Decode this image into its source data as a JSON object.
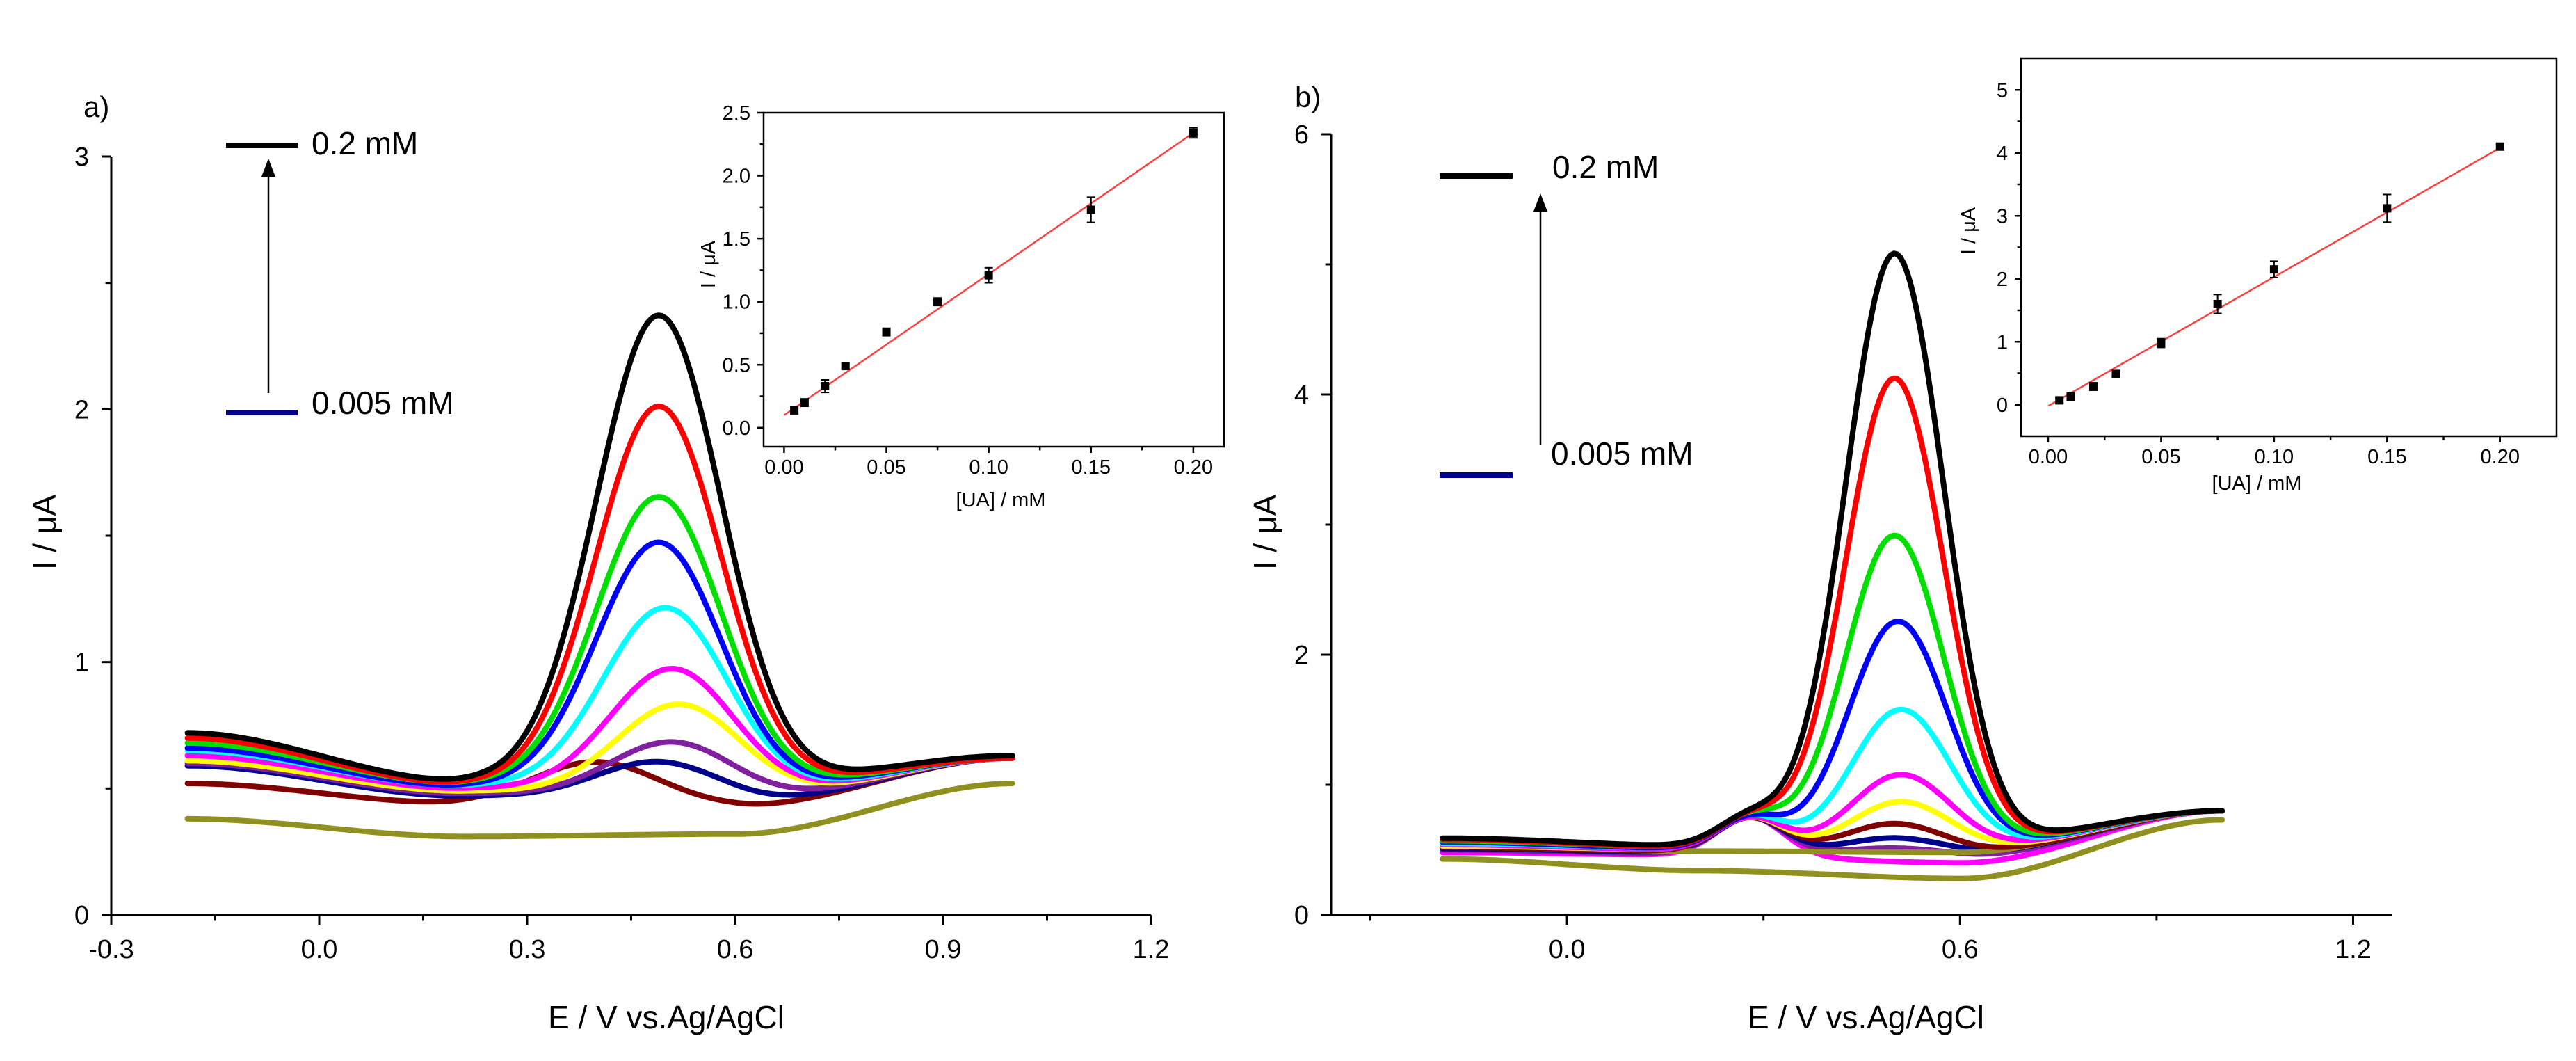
{
  "colors": {
    "c0.2": "#000000",
    "c0.15": "#ff0000",
    "c0.1": "#00e000",
    "c0.075": "#0000ff",
    "c0.05": "#00ffff",
    "c0.03": "#ff00ff",
    "c0.02": "#ffff00",
    "c0.01": "#8020a0",
    "c0.005": "#00008b",
    "c0.001": "#800000",
    "blank": "#909020",
    "fit": "#ff4040",
    "point": "#000000"
  },
  "chart_data": [
    {
      "id": "a_main",
      "type": "line",
      "panel_label": "a)",
      "xlabel": "E / V vs.Ag/AgCl",
      "ylabel": "I / μA",
      "xlim": [
        -0.3,
        1.2
      ],
      "ylim": [
        0,
        3
      ],
      "xticks": [
        "-0.3",
        "0.0",
        "0.3",
        "0.6",
        "0.9",
        "1.2"
      ],
      "yticks": [
        "0",
        "1",
        "2",
        "3"
      ],
      "annotation": {
        "top_label": "0.2 mM",
        "bottom_label": "0.005 mM"
      },
      "x_range": [
        -0.19,
        1.0
      ],
      "series": [
        {
          "color_key": "blank",
          "baseline": [
            0.38,
            0.31,
            0.32,
            0.52
          ],
          "peak_x": 0.49,
          "peak_height": 0.0,
          "peak_width": 0.09
        },
        {
          "color_key": "c0.001",
          "baseline": [
            0.52,
            0.44,
            0.43,
            0.62
          ],
          "peak_x": 0.4,
          "peak_height": 0.17,
          "peak_width": 0.09
        },
        {
          "color_key": "c0.005",
          "baseline": [
            0.59,
            0.47,
            0.44,
            0.62
          ],
          "peak_x": 0.49,
          "peak_height": 0.16,
          "peak_width": 0.09
        },
        {
          "color_key": "c0.01",
          "baseline": [
            0.6,
            0.48,
            0.45,
            0.62
          ],
          "peak_x": 0.51,
          "peak_height": 0.23,
          "peak_width": 0.09
        },
        {
          "color_key": "c0.02",
          "baseline": [
            0.61,
            0.49,
            0.46,
            0.62
          ],
          "peak_x": 0.52,
          "peak_height": 0.37,
          "peak_width": 0.09
        },
        {
          "color_key": "c0.03",
          "baseline": [
            0.63,
            0.5,
            0.47,
            0.62
          ],
          "peak_x": 0.51,
          "peak_height": 0.5,
          "peak_width": 0.09
        },
        {
          "color_key": "c0.05",
          "baseline": [
            0.65,
            0.51,
            0.48,
            0.62
          ],
          "peak_x": 0.5,
          "peak_height": 0.73,
          "peak_width": 0.09
        },
        {
          "color_key": "c0.075",
          "baseline": [
            0.66,
            0.51,
            0.49,
            0.62
          ],
          "peak_x": 0.49,
          "peak_height": 0.98,
          "peak_width": 0.09
        },
        {
          "color_key": "c0.1",
          "baseline": [
            0.68,
            0.52,
            0.5,
            0.62
          ],
          "peak_x": 0.49,
          "peak_height": 1.15,
          "peak_width": 0.09
        },
        {
          "color_key": "c0.15",
          "baseline": [
            0.7,
            0.52,
            0.51,
            0.62
          ],
          "peak_x": 0.49,
          "peak_height": 1.5,
          "peak_width": 0.09
        },
        {
          "color_key": "c0.2",
          "baseline": [
            0.72,
            0.53,
            0.52,
            0.63
          ],
          "peak_x": 0.49,
          "peak_height": 1.85,
          "peak_width": 0.09
        }
      ]
    },
    {
      "id": "a_inset",
      "type": "scatter",
      "xlabel": "[UA] / mM",
      "ylabel": "I / μA",
      "xlim": [
        -0.01,
        0.215
      ],
      "ylim": [
        -0.15,
        2.5
      ],
      "xticks": [
        "0.00",
        "0.05",
        "0.10",
        "0.15",
        "0.20"
      ],
      "yticks": [
        "0.0",
        "0.5",
        "1.0",
        "1.5",
        "2.0",
        "2.5"
      ],
      "x": [
        0.005,
        0.01,
        0.02,
        0.03,
        0.05,
        0.075,
        0.1,
        0.15,
        0.2
      ],
      "y": [
        0.14,
        0.2,
        0.33,
        0.49,
        0.76,
        1.0,
        1.21,
        1.73,
        2.34
      ],
      "err": [
        0.03,
        0.03,
        0.05,
        0.02,
        0.03,
        0.03,
        0.06,
        0.1,
        0.04
      ],
      "fit": [
        [
          0.0,
          0.1
        ],
        [
          0.2,
          2.34
        ]
      ]
    },
    {
      "id": "b_main",
      "type": "line",
      "panel_label": "b)",
      "xlabel": "E / V vs.Ag/AgCl",
      "ylabel": "I / μA",
      "xlim": [
        -0.36,
        1.26
      ],
      "ylim": [
        0,
        6
      ],
      "xticks": [
        "0.0",
        "0.6",
        "1.2"
      ],
      "yticks": [
        "0",
        "2",
        "4",
        "6"
      ],
      "annotation": {
        "top_label": "0.2 mM",
        "bottom_label": "0.005 mM"
      },
      "x_range": [
        -0.19,
        1.0
      ],
      "series": [
        {
          "color_key": "blank",
          "baseline": [
            0.43,
            0.34,
            0.28,
            0.73
          ],
          "peak_x": 0.5,
          "peak_height": 0.0,
          "peak_width": 0.075,
          "bump": 0.0
        },
        {
          "color_key": "c0.03",
          "baseline": [
            0.48,
            0.46,
            0.4,
            0.8
          ],
          "peak_x": 0.5,
          "peak_height": 0.0,
          "peak_width": 0.075,
          "bump": 0.3
        },
        {
          "color_key": "c0.01",
          "baseline": [
            0.5,
            0.47,
            0.45,
            0.8
          ],
          "peak_x": 0.5,
          "peak_height": 0.06,
          "peak_width": 0.075,
          "bump": 0.28
        },
        {
          "color_key": "c0.005",
          "baseline": [
            0.51,
            0.48,
            0.47,
            0.8
          ],
          "peak_x": 0.5,
          "peak_height": 0.12,
          "peak_width": 0.075,
          "bump": 0.27
        },
        {
          "color_key": "blank",
          "baseline": [
            0.52,
            0.49,
            0.48,
            0.8
          ],
          "peak_x": 0.5,
          "peak_height": 0.0,
          "peak_width": 0.075,
          "bump": 0.0
        },
        {
          "color_key": "c0.001",
          "baseline": [
            0.52,
            0.49,
            0.48,
            0.8
          ],
          "peak_x": 0.5,
          "peak_height": 0.22,
          "peak_width": 0.075,
          "bump": 0.26
        },
        {
          "color_key": "c0.02",
          "baseline": [
            0.53,
            0.5,
            0.5,
            0.8
          ],
          "peak_x": 0.51,
          "peak_height": 0.37,
          "peak_width": 0.075,
          "bump": 0.25
        },
        {
          "color_key": "c0.03",
          "baseline": [
            0.54,
            0.5,
            0.51,
            0.8
          ],
          "peak_x": 0.51,
          "peak_height": 0.57,
          "peak_width": 0.075,
          "bump": 0.25
        },
        {
          "color_key": "c0.05",
          "baseline": [
            0.55,
            0.51,
            0.52,
            0.8
          ],
          "peak_x": 0.51,
          "peak_height": 1.06,
          "peak_width": 0.075,
          "bump": 0.25
        },
        {
          "color_key": "c0.075",
          "baseline": [
            0.56,
            0.51,
            0.53,
            0.8
          ],
          "peak_x": 0.505,
          "peak_height": 1.73,
          "peak_width": 0.075,
          "bump": 0.24
        },
        {
          "color_key": "c0.1",
          "baseline": [
            0.57,
            0.52,
            0.54,
            0.8
          ],
          "peak_x": 0.5,
          "peak_height": 2.38,
          "peak_width": 0.075,
          "bump": 0.24
        },
        {
          "color_key": "c0.15",
          "baseline": [
            0.58,
            0.52,
            0.55,
            0.8
          ],
          "peak_x": 0.5,
          "peak_height": 3.58,
          "peak_width": 0.075,
          "bump": 0.23
        },
        {
          "color_key": "c0.2",
          "baseline": [
            0.59,
            0.53,
            0.56,
            0.8
          ],
          "peak_x": 0.5,
          "peak_height": 4.53,
          "peak_width": 0.075,
          "bump": 0.22
        }
      ]
    },
    {
      "id": "b_inset",
      "type": "scatter",
      "xlabel": "[UA] / mM",
      "ylabel": "I / μA",
      "xlim": [
        -0.012,
        0.225
      ],
      "ylim": [
        -0.5,
        5.5
      ],
      "xticks": [
        "0.00",
        "0.05",
        "0.10",
        "0.15",
        "0.20"
      ],
      "yticks": [
        "0",
        "1",
        "2",
        "3",
        "4",
        "5"
      ],
      "x": [
        0.005,
        0.01,
        0.02,
        0.03,
        0.05,
        0.075,
        0.1,
        0.15,
        0.2
      ],
      "y": [
        0.07,
        0.13,
        0.29,
        0.49,
        0.98,
        1.6,
        2.15,
        3.12,
        4.1
      ],
      "err": [
        0.04,
        0.04,
        0.06,
        0.04,
        0.07,
        0.15,
        0.13,
        0.22,
        0.04
      ],
      "fit": [
        [
          0.0,
          -0.02
        ],
        [
          0.2,
          4.08
        ]
      ]
    }
  ]
}
